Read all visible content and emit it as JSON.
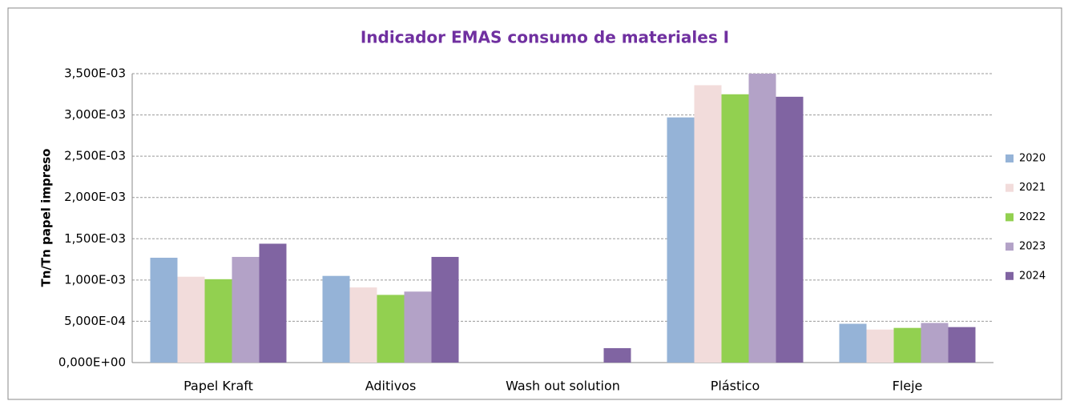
{
  "chart_data": {
    "type": "bar",
    "title": "Indicador EMAS consumo de materiales I",
    "y_label": "Tn/Tn papel impreso",
    "categories": [
      "Papel Kraft",
      "Aditivos",
      "Wash out solution",
      "Plástico",
      "Fleje"
    ],
    "series": [
      {
        "name": "2020",
        "color": "#95b3d7",
        "values": [
          0.00127,
          0.00105,
          0,
          0.00297,
          0.00047
        ]
      },
      {
        "name": "2021",
        "color": "#f2dcdb",
        "values": [
          0.00104,
          0.00091,
          0,
          0.00336,
          0.0004
        ]
      },
      {
        "name": "2022",
        "color": "#92d050",
        "values": [
          0.00101,
          0.00082,
          0,
          0.00325,
          0.00042
        ]
      },
      {
        "name": "2023",
        "color": "#b3a2c7",
        "values": [
          0.00128,
          0.00086,
          0,
          0.0035,
          0.00048
        ]
      },
      {
        "name": "2024",
        "color": "#8064a2",
        "values": [
          0.00144,
          0.00128,
          0.000175,
          0.00322,
          0.00043
        ]
      }
    ],
    "ylim": [
      0,
      0.0035
    ],
    "yticks": [
      {
        "value": 0,
        "label": "0,000E+00"
      },
      {
        "value": 0.0005,
        "label": "5,000E-04"
      },
      {
        "value": 0.001,
        "label": "1,000E-03"
      },
      {
        "value": 0.0015,
        "label": "1,500E-03"
      },
      {
        "value": 0.002,
        "label": "2,000E-03"
      },
      {
        "value": 0.0025,
        "label": "2,500E-03"
      },
      {
        "value": 0.003,
        "label": "3,000E-03"
      },
      {
        "value": 0.0035,
        "label": "3,500E-03"
      }
    ],
    "grid": true,
    "legend": "right"
  }
}
